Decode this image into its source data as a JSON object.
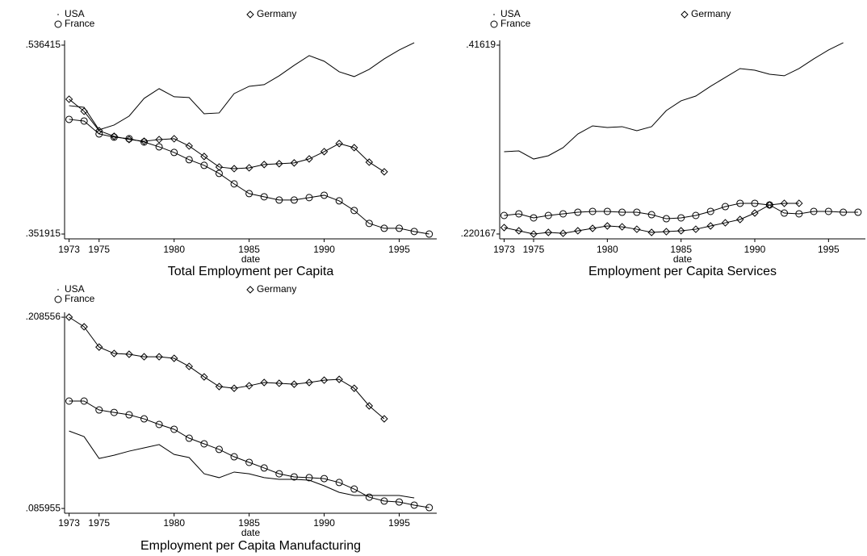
{
  "chart_data": [
    {
      "type": "line",
      "title": "Total Employment per Capita",
      "x_label": "date",
      "x": [
        1973,
        1974,
        1975,
        1976,
        1977,
        1978,
        1979,
        1980,
        1981,
        1982,
        1983,
        1984,
        1985,
        1986,
        1987,
        1988,
        1989,
        1990,
        1991,
        1992,
        1993,
        1994,
        1995,
        1996,
        1997
      ],
      "xlim": [
        1972.7,
        1997.5
      ],
      "xticks": [
        1973,
        1975,
        1980,
        1985,
        1990,
        1995
      ],
      "ylim": [
        0.3472,
        0.5411
      ],
      "yticks": [
        {
          "value": 0.536415,
          "label": ".536415"
        },
        {
          "value": 0.351915,
          "label": ".351915"
        }
      ],
      "series": [
        {
          "name": "USA",
          "color": "#000000",
          "marker": "none",
          "values": [
            0.4773,
            0.4757,
            0.4537,
            0.4584,
            0.4671,
            0.4844,
            0.4939,
            0.486,
            0.4852,
            0.4694,
            0.4702,
            0.4891,
            0.4962,
            0.4978,
            0.5065,
            0.5167,
            0.5262,
            0.5207,
            0.5104,
            0.5057,
            0.5128,
            0.523,
            0.5317,
            0.5388,
            null
          ]
        },
        {
          "name": "Germany",
          "color": "#000000",
          "marker": "diamond",
          "values": [
            0.4836,
            0.4718,
            0.4529,
            0.4474,
            0.4442,
            0.4426,
            0.4442,
            0.445,
            0.4379,
            0.4277,
            0.4174,
            0.4158,
            0.4166,
            0.4198,
            0.4206,
            0.4214,
            0.4253,
            0.4324,
            0.4403,
            0.4363,
            0.4221,
            0.4127,
            null,
            null,
            null
          ]
        },
        {
          "name": "France",
          "color": "#000000",
          "marker": "circle",
          "values": [
            0.4639,
            0.4623,
            0.4497,
            0.4466,
            0.445,
            0.4418,
            0.4371,
            0.4316,
            0.4245,
            0.419,
            0.4111,
            0.4009,
            0.3914,
            0.3883,
            0.3851,
            0.3851,
            0.3875,
            0.3898,
            0.3843,
            0.3749,
            0.3623,
            0.3575,
            0.3575,
            0.3544,
            0.3519
          ]
        }
      ]
    },
    {
      "type": "line",
      "title": "Employment per Capita Services",
      "x_label": "date",
      "x": [
        1973,
        1974,
        1975,
        1976,
        1977,
        1978,
        1979,
        1980,
        1981,
        1982,
        1983,
        1984,
        1985,
        1986,
        1987,
        1988,
        1989,
        1990,
        1991,
        1992,
        1993,
        1994,
        1995,
        1996,
        1997
      ],
      "xlim": [
        1972.7,
        1997.5
      ],
      "xticks": [
        1973,
        1975,
        1980,
        1985,
        1990,
        1995
      ],
      "ylim": [
        0.2151,
        0.4212
      ],
      "yticks": [
        {
          "value": 0.41619,
          "label": ".41619"
        },
        {
          "value": 0.220167,
          "label": ".220167"
        }
      ],
      "series": [
        {
          "name": "USA",
          "color": "#000000",
          "marker": "none",
          "values": [
            0.3056,
            0.3064,
            0.298,
            0.3014,
            0.3098,
            0.324,
            0.3324,
            0.3307,
            0.3316,
            0.3274,
            0.3316,
            0.3483,
            0.3584,
            0.3634,
            0.3735,
            0.3827,
            0.3919,
            0.3902,
            0.386,
            0.3844,
            0.3919,
            0.402,
            0.4112,
            0.4187,
            null
          ]
        },
        {
          "name": "Germany",
          "color": "#000000",
          "marker": "diamond",
          "values": [
            0.2268,
            0.2235,
            0.2201,
            0.2218,
            0.2209,
            0.2235,
            0.226,
            0.2285,
            0.2276,
            0.2251,
            0.2218,
            0.2226,
            0.2235,
            0.2251,
            0.2285,
            0.2318,
            0.2352,
            0.2419,
            0.2503,
            0.252,
            0.252,
            null,
            null,
            null,
            null
          ]
        },
        {
          "name": "France",
          "color": "#000000",
          "marker": "circle",
          "values": [
            0.2394,
            0.2411,
            0.2369,
            0.2394,
            0.2411,
            0.2427,
            0.2436,
            0.2436,
            0.2427,
            0.2427,
            0.2402,
            0.236,
            0.2369,
            0.2394,
            0.2436,
            0.2486,
            0.252,
            0.252,
            0.2503,
            0.2419,
            0.2411,
            0.2436,
            0.2436,
            0.2427,
            0.2427
          ]
        }
      ]
    },
    {
      "type": "line",
      "title": "Employment per Capita Manufacturing",
      "x_label": "date",
      "x": [
        1973,
        1974,
        1975,
        1976,
        1977,
        1978,
        1979,
        1980,
        1981,
        1982,
        1983,
        1984,
        1985,
        1986,
        1987,
        1988,
        1989,
        1990,
        1991,
        1992,
        1993,
        1994,
        1995,
        1996,
        1997
      ],
      "xlim": [
        1972.7,
        1997.5
      ],
      "xticks": [
        1973,
        1975,
        1980,
        1985,
        1990,
        1995
      ],
      "ylim": [
        0.0829,
        0.2117
      ],
      "yticks": [
        {
          "value": 0.208556,
          "label": ".208556"
        },
        {
          "value": 0.085955,
          "label": ".085955"
        }
      ],
      "series": [
        {
          "name": "USA",
          "color": "#000000",
          "marker": "none",
          "values": [
            0.1356,
            0.132,
            0.118,
            0.1201,
            0.1227,
            0.1248,
            0.1269,
            0.1206,
            0.1186,
            0.1082,
            0.1057,
            0.1093,
            0.1082,
            0.1057,
            0.1046,
            0.1046,
            0.1041,
            0.1005,
            0.0963,
            0.0943,
            0.0943,
            0.0943,
            0.0943,
            0.0927,
            null
          ]
        },
        {
          "name": "Germany",
          "color": "#000000",
          "marker": "diamond",
          "values": [
            0.2086,
            0.2024,
            0.1894,
            0.1853,
            0.1848,
            0.1832,
            0.1832,
            0.1822,
            0.177,
            0.1703,
            0.1641,
            0.163,
            0.1646,
            0.1667,
            0.1662,
            0.1656,
            0.1667,
            0.1682,
            0.1687,
            0.163,
            0.1517,
            0.1434,
            null,
            null,
            null
          ]
        },
        {
          "name": "France",
          "color": "#000000",
          "marker": "circle",
          "values": [
            0.1548,
            0.1548,
            0.1491,
            0.1475,
            0.146,
            0.1434,
            0.1398,
            0.1367,
            0.131,
            0.1274,
            0.1238,
            0.1191,
            0.1155,
            0.1119,
            0.1082,
            0.1062,
            0.1057,
            0.1051,
            0.1026,
            0.0984,
            0.0932,
            0.0907,
            0.0901,
            0.0881,
            0.0865
          ]
        }
      ]
    }
  ]
}
